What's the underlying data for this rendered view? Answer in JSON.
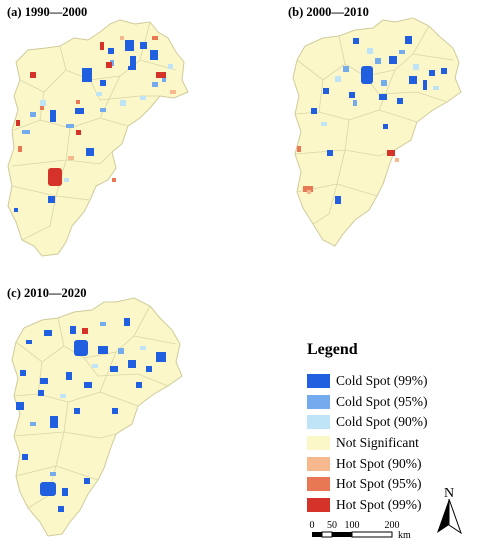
{
  "panels": [
    {
      "id": "a",
      "title": "(a) 1990—2000"
    },
    {
      "id": "b",
      "title": "(b) 2000—2010"
    },
    {
      "id": "c",
      "title": "(c) 2010—2020"
    }
  ],
  "legend": {
    "title": "Legend",
    "items": [
      {
        "label": "Cold Spot (99%)",
        "color": "#1f5fe0"
      },
      {
        "label": "Cold Spot (95%)",
        "color": "#74aaee"
      },
      {
        "label": "Cold Spot (90%)",
        "color": "#bfe3f7"
      },
      {
        "label": "Not Significant",
        "color": "#fbf7c8"
      },
      {
        "label": "Hot Spot (90%)",
        "color": "#f6b98e"
      },
      {
        "label": "Hot Spot (95%)",
        "color": "#e87753"
      },
      {
        "label": "Hot Spot (99%)",
        "color": "#d5332a"
      }
    ]
  },
  "scale_bar": {
    "ticks": [
      "0",
      "50",
      "100",
      "200"
    ],
    "unit": "km"
  },
  "north_arrow": {
    "label": "N",
    "icon": "north-arrow-icon"
  },
  "colors": {
    "boundary": "#d9d6a8",
    "outline": "#cfcb9a"
  }
}
